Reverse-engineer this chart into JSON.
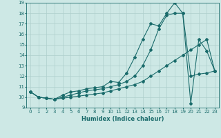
{
  "xlabel": "Humidex (Indice chaleur)",
  "background_color": "#cde8e5",
  "grid_color": "#aecfcc",
  "line_color": "#1a6b6b",
  "xlim": [
    -0.5,
    23.5
  ],
  "ylim": [
    9,
    19
  ],
  "x_ticks": [
    0,
    1,
    2,
    3,
    4,
    5,
    6,
    7,
    8,
    9,
    10,
    11,
    12,
    13,
    14,
    15,
    16,
    17,
    18,
    19,
    20,
    21,
    22,
    23
  ],
  "y_ticks": [
    9,
    10,
    11,
    12,
    13,
    14,
    15,
    16,
    17,
    18,
    19
  ],
  "line1_x": [
    0,
    1,
    2,
    3,
    4,
    5,
    6,
    7,
    8,
    9,
    10,
    11,
    12,
    13,
    14,
    15,
    16,
    17,
    18,
    19,
    20,
    21,
    22,
    23
  ],
  "line1_y": [
    10.5,
    10.0,
    9.9,
    9.8,
    10.2,
    10.5,
    10.6,
    10.8,
    10.9,
    11.0,
    11.5,
    11.4,
    12.3,
    13.8,
    15.5,
    17.0,
    16.8,
    18.0,
    19.0,
    18.0,
    9.4,
    15.5,
    14.4,
    12.5
  ],
  "line2_x": [
    0,
    1,
    2,
    3,
    4,
    5,
    6,
    7,
    8,
    9,
    10,
    11,
    12,
    13,
    14,
    15,
    16,
    17,
    18,
    19,
    20,
    21,
    22,
    23
  ],
  "line2_y": [
    10.5,
    10.0,
    9.9,
    9.8,
    10.0,
    10.2,
    10.4,
    10.6,
    10.7,
    10.8,
    11.0,
    11.2,
    11.5,
    12.0,
    13.0,
    14.5,
    16.5,
    17.8,
    18.0,
    18.0,
    12.0,
    12.2,
    12.3,
    12.5
  ],
  "line3_x": [
    0,
    1,
    2,
    3,
    4,
    5,
    6,
    7,
    8,
    9,
    10,
    11,
    12,
    13,
    14,
    15,
    16,
    17,
    18,
    19,
    20,
    21,
    22,
    23
  ],
  "line3_y": [
    10.5,
    10.0,
    9.9,
    9.8,
    9.9,
    10.0,
    10.1,
    10.2,
    10.3,
    10.4,
    10.6,
    10.8,
    11.0,
    11.2,
    11.5,
    12.0,
    12.5,
    13.0,
    13.5,
    14.0,
    14.5,
    15.0,
    15.5,
    12.5
  ]
}
